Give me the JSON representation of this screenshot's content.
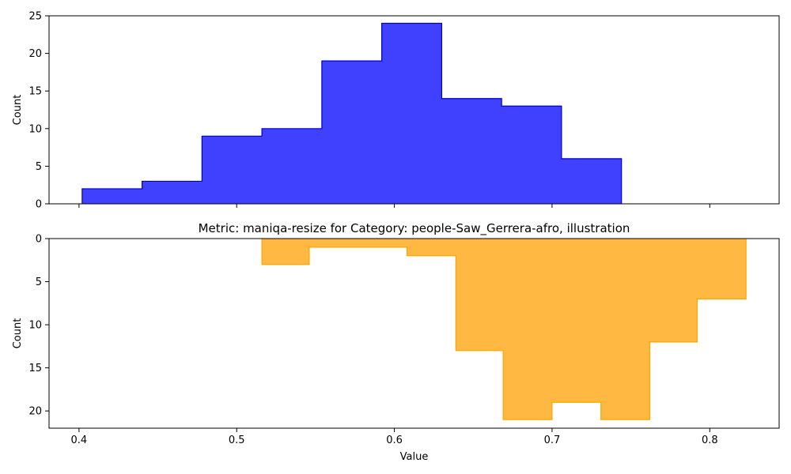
{
  "chart_data": [
    {
      "type": "histogram-step",
      "title": "",
      "xlabel": "",
      "ylabel": "Count",
      "xlim": [
        0.381,
        0.844
      ],
      "ylim": [
        0,
        25
      ],
      "y_inverted": false,
      "x_ticks": [
        "0.4",
        "0.5",
        "0.6",
        "0.7",
        "0.8"
      ],
      "x_tick_labels_visible": false,
      "y_ticks": [
        "0",
        "5",
        "10",
        "15",
        "20",
        "25"
      ],
      "grid": false,
      "colors": {
        "fill": "#4040ff",
        "edge": "#0000cc",
        "fill_opacity": 1
      },
      "bins": [
        {
          "x0": 0.402,
          "x1": 0.44,
          "count": 2
        },
        {
          "x0": 0.44,
          "x1": 0.478,
          "count": 3
        },
        {
          "x0": 0.478,
          "x1": 0.516,
          "count": 9
        },
        {
          "x0": 0.516,
          "x1": 0.554,
          "count": 10
        },
        {
          "x0": 0.554,
          "x1": 0.592,
          "count": 19
        },
        {
          "x0": 0.592,
          "x1": 0.63,
          "count": 24
        },
        {
          "x0": 0.63,
          "x1": 0.668,
          "count": 14
        },
        {
          "x0": 0.668,
          "x1": 0.706,
          "count": 13
        },
        {
          "x0": 0.706,
          "x1": 0.744,
          "count": 6
        }
      ]
    },
    {
      "type": "histogram-step",
      "title": "Metric: maniqa-resize for Category: people-Saw_Gerrera-afro, illustration",
      "xlabel": "Value",
      "ylabel": "Count",
      "xlim": [
        0.381,
        0.844
      ],
      "ylim": [
        0,
        22
      ],
      "y_inverted": true,
      "x_ticks": [
        "0.4",
        "0.5",
        "0.6",
        "0.7",
        "0.8"
      ],
      "x_tick_labels_visible": true,
      "y_ticks": [
        "0",
        "5",
        "10",
        "15",
        "20"
      ],
      "grid": false,
      "colors": {
        "fill": "#ffb841",
        "edge": "#ffa500",
        "fill_opacity": 1
      },
      "bins": [
        {
          "x0": 0.516,
          "x1": 0.546,
          "count": 3
        },
        {
          "x0": 0.546,
          "x1": 0.577,
          "count": 1
        },
        {
          "x0": 0.577,
          "x1": 0.608,
          "count": 1
        },
        {
          "x0": 0.608,
          "x1": 0.639,
          "count": 2
        },
        {
          "x0": 0.639,
          "x1": 0.669,
          "count": 13
        },
        {
          "x0": 0.669,
          "x1": 0.7,
          "count": 21
        },
        {
          "x0": 0.7,
          "x1": 0.731,
          "count": 19
        },
        {
          "x0": 0.731,
          "x1": 0.762,
          "count": 21
        },
        {
          "x0": 0.762,
          "x1": 0.792,
          "count": 12
        },
        {
          "x0": 0.792,
          "x1": 0.823,
          "count": 7
        }
      ]
    }
  ]
}
